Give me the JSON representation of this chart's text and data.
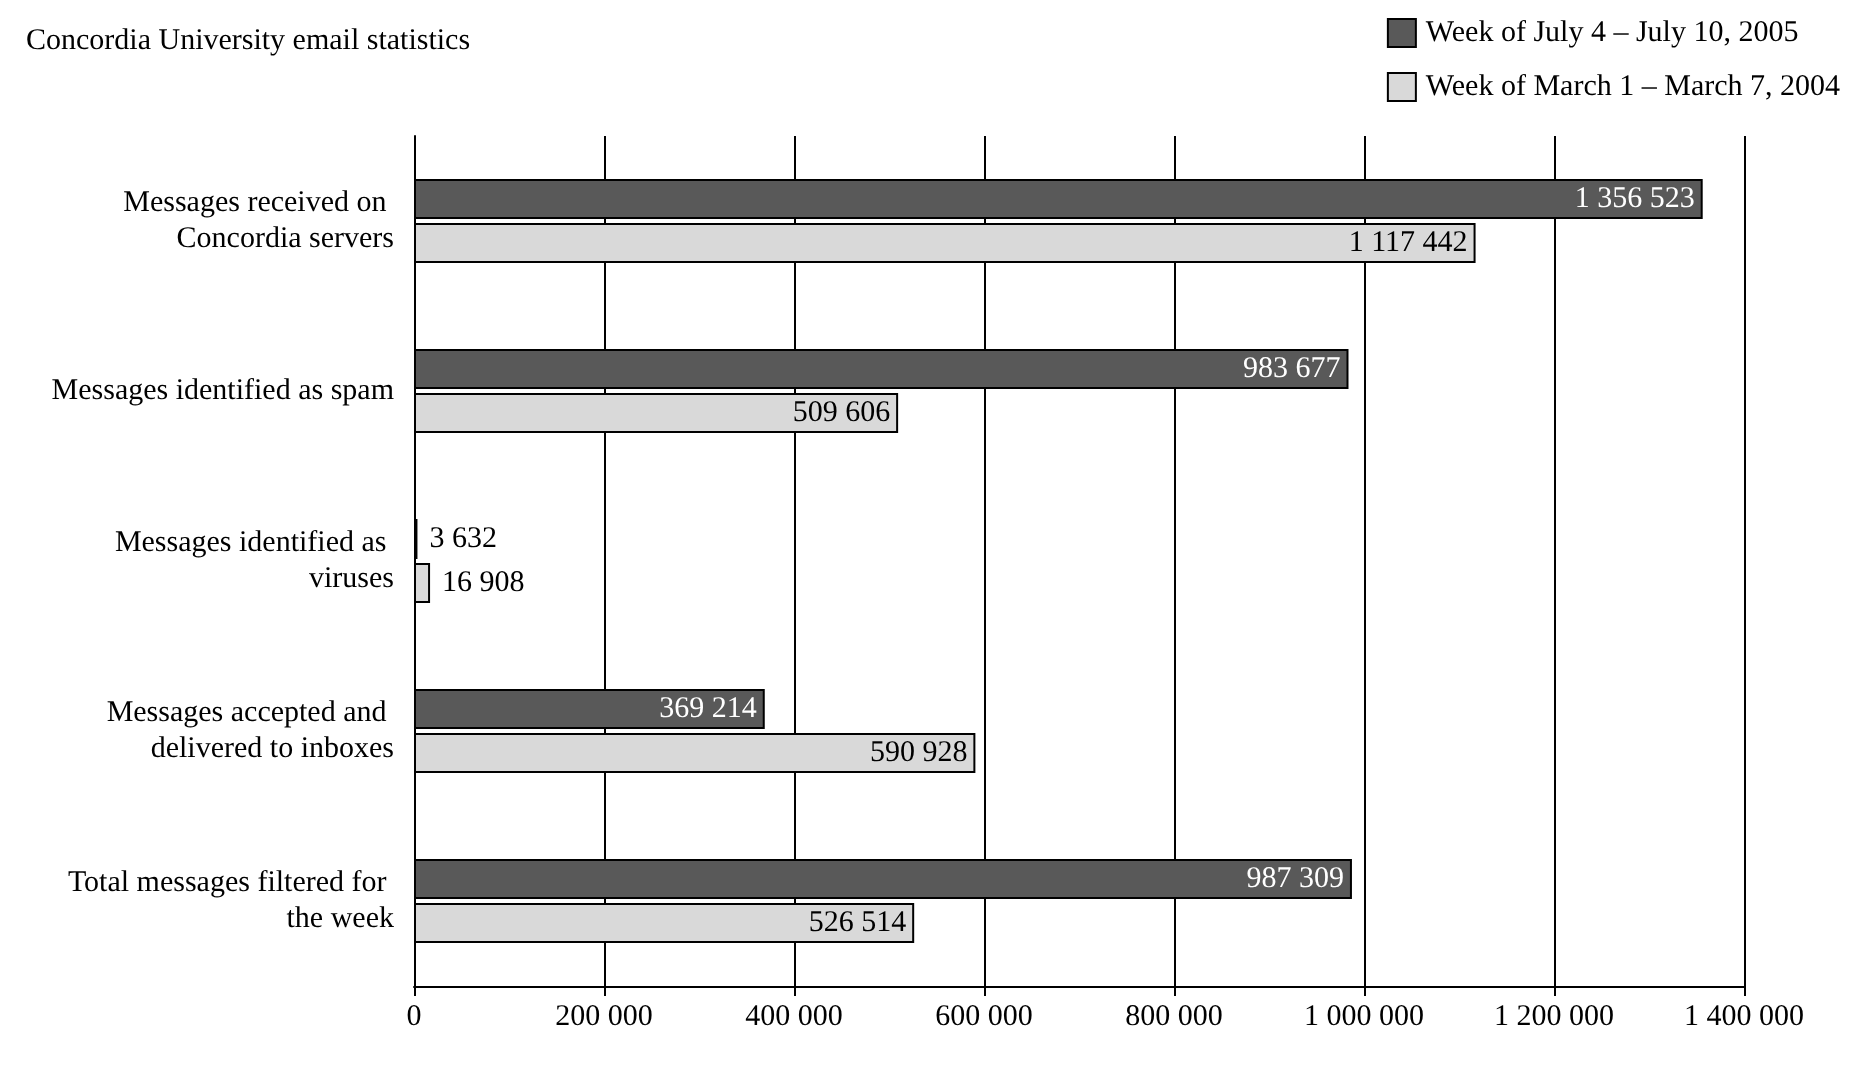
{
  "chart_data": {
    "type": "bar",
    "orientation": "horizontal",
    "title": "Concordia University email statistics",
    "categories": [
      "Messages received on Concordia servers",
      "Messages identified as spam",
      "Messages identified as viruses",
      "Messages accepted and delivered to inboxes",
      "Total messages filtered for the week"
    ],
    "series": [
      {
        "name": "Week of July 4 – July 10, 2005",
        "color": "#595959",
        "values": [
          1356523,
          983677,
          3632,
          369214,
          987309
        ],
        "value_labels": [
          "1 356 523",
          "983 677",
          "3 632",
          "369 214",
          "987 309"
        ]
      },
      {
        "name": "Week of March 1 – March 7, 2004",
        "color": "#d9d9d9",
        "values": [
          1117442,
          509606,
          16908,
          590928,
          526514
        ],
        "value_labels": [
          "1 117 442",
          "509 606",
          "16 908",
          "590 928",
          "526 514"
        ]
      }
    ],
    "xlim": [
      0,
      1400000
    ],
    "xticks": [
      0,
      {
        "value": 200000,
        "label": "200 000"
      },
      {
        "value": 400000,
        "label": "400 000"
      },
      {
        "value": 600000,
        "label": "600 000"
      },
      {
        "value": 800000,
        "label": "800 000"
      },
      {
        "value": 1000000,
        "label": "1 000 000"
      },
      {
        "value": 1200000,
        "label": "1 200 000"
      },
      {
        "value": 1400000,
        "label": "1 400 000"
      }
    ],
    "grid": "x",
    "legend": "top right"
  }
}
